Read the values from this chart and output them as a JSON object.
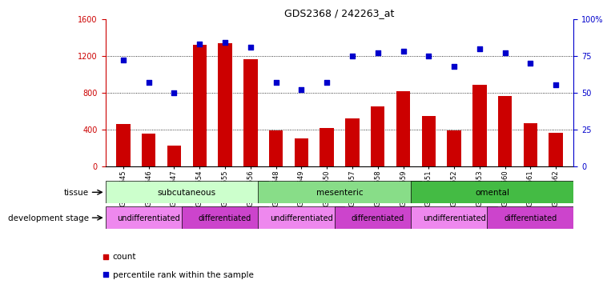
{
  "title": "GDS2368 / 242263_at",
  "samples": [
    "GSM30645",
    "GSM30646",
    "GSM30647",
    "GSM30654",
    "GSM30655",
    "GSM30656",
    "GSM30648",
    "GSM30649",
    "GSM30650",
    "GSM30657",
    "GSM30658",
    "GSM30659",
    "GSM30651",
    "GSM30652",
    "GSM30653",
    "GSM30660",
    "GSM30661",
    "GSM30662"
  ],
  "counts": [
    460,
    350,
    220,
    1320,
    1340,
    1160,
    390,
    300,
    415,
    520,
    650,
    810,
    540,
    390,
    880,
    760,
    470,
    365
  ],
  "percentiles": [
    72,
    57,
    50,
    83,
    84,
    81,
    57,
    52,
    57,
    75,
    77,
    78,
    75,
    68,
    80,
    77,
    70,
    55
  ],
  "ylim_left": [
    0,
    1600
  ],
  "ylim_right": [
    0,
    100
  ],
  "yticks_left": [
    0,
    400,
    800,
    1200,
    1600
  ],
  "yticks_right": [
    0,
    25,
    50,
    75,
    100
  ],
  "bar_color": "#cc0000",
  "scatter_color": "#0000cc",
  "tissue_groups": [
    {
      "label": "subcutaneous",
      "start": 0,
      "end": 6,
      "color": "#ccffcc"
    },
    {
      "label": "mesenteric",
      "start": 6,
      "end": 12,
      "color": "#88dd88"
    },
    {
      "label": "omental",
      "start": 12,
      "end": 18,
      "color": "#44bb44"
    }
  ],
  "dev_groups": [
    {
      "label": "undifferentiated",
      "start": 0,
      "end": 3,
      "color": "#ee88ee"
    },
    {
      "label": "differentiated",
      "start": 3,
      "end": 6,
      "color": "#cc44cc"
    },
    {
      "label": "undifferentiated",
      "start": 6,
      "end": 9,
      "color": "#ee88ee"
    },
    {
      "label": "differentiated",
      "start": 9,
      "end": 12,
      "color": "#cc44cc"
    },
    {
      "label": "undifferentiated",
      "start": 12,
      "end": 15,
      "color": "#ee88ee"
    },
    {
      "label": "differentiated",
      "start": 15,
      "end": 18,
      "color": "#cc44cc"
    }
  ],
  "legend_count_label": "count",
  "legend_pct_label": "percentile rank within the sample",
  "xlabel_tissue": "tissue",
  "xlabel_devstage": "development stage"
}
